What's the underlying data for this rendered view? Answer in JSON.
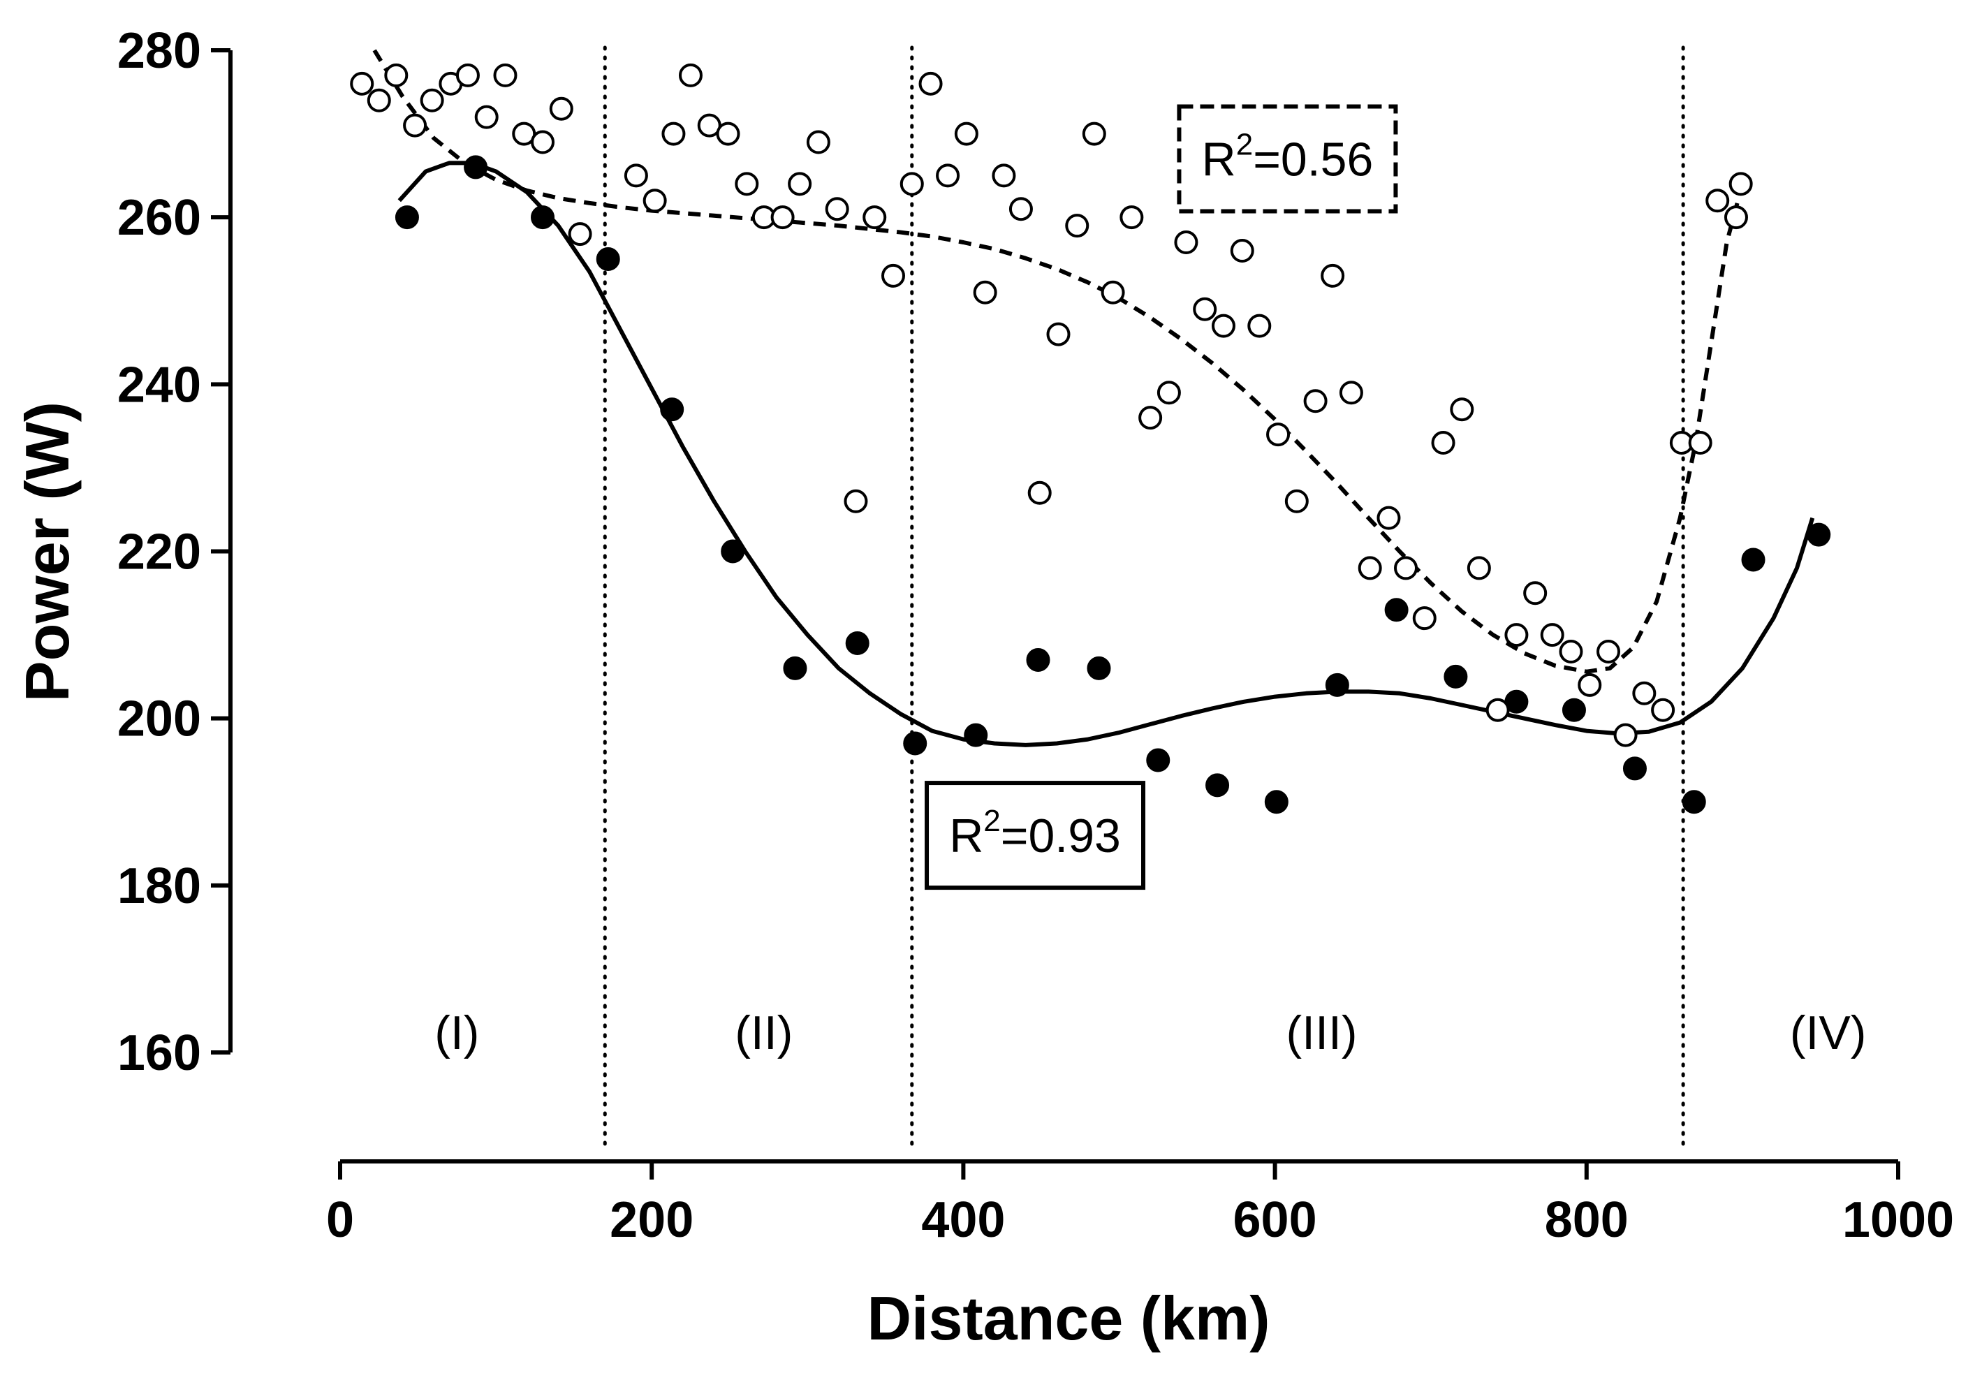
{
  "chart_data": {
    "type": "scatter",
    "title": "",
    "xlabel": "Distance (km)",
    "ylabel": "Power (W)",
    "xlim": [
      0,
      1000
    ],
    "ylim": [
      160,
      280
    ],
    "x_ticks": [
      0,
      200,
      400,
      600,
      800,
      1000
    ],
    "y_ticks": [
      160,
      180,
      200,
      220,
      240,
      260,
      280
    ],
    "grid": false,
    "legend": "none",
    "phase_boundaries": [
      170,
      367,
      862
    ],
    "phases": [
      {
        "label": "(I)",
        "x": 75
      },
      {
        "label": "(II)",
        "x": 272
      },
      {
        "label": "(III)",
        "x": 630
      },
      {
        "label": "(IV)",
        "x": 955
      }
    ],
    "series": [
      {
        "name": "filled",
        "marker": "filled-circle",
        "fit": "solid",
        "r2": "R²=0.93",
        "r2_base": "R",
        "r2_sup": "2",
        "r2_rest": "=0.93",
        "annotation_at": [
          446,
          186
        ],
        "points": [
          [
            43,
            260
          ],
          [
            87,
            266
          ],
          [
            130,
            260
          ],
          [
            172,
            255
          ],
          [
            213,
            237
          ],
          [
            252,
            220
          ],
          [
            292,
            206
          ],
          [
            332,
            209
          ],
          [
            369,
            197
          ],
          [
            408,
            198
          ],
          [
            448,
            207
          ],
          [
            487,
            206
          ],
          [
            525,
            195
          ],
          [
            563,
            192
          ],
          [
            601,
            190
          ],
          [
            640,
            204
          ],
          [
            678,
            213
          ],
          [
            716,
            205
          ],
          [
            755,
            202
          ],
          [
            792,
            201
          ],
          [
            831,
            194
          ],
          [
            869,
            190
          ],
          [
            907,
            219
          ],
          [
            949,
            222
          ]
        ],
        "fit_curve": [
          [
            38,
            262
          ],
          [
            55,
            265.5
          ],
          [
            70,
            266.5
          ],
          [
            85,
            266.5
          ],
          [
            100,
            265.5
          ],
          [
            120,
            263
          ],
          [
            140,
            259
          ],
          [
            160,
            253.5
          ],
          [
            180,
            246.5
          ],
          [
            200,
            239.5
          ],
          [
            220,
            232.5
          ],
          [
            240,
            226
          ],
          [
            260,
            220
          ],
          [
            280,
            214.5
          ],
          [
            300,
            210
          ],
          [
            320,
            206
          ],
          [
            340,
            203
          ],
          [
            360,
            200.5
          ],
          [
            380,
            198.5
          ],
          [
            400,
            197.5
          ],
          [
            420,
            197
          ],
          [
            440,
            196.8
          ],
          [
            460,
            197
          ],
          [
            480,
            197.5
          ],
          [
            500,
            198.3
          ],
          [
            520,
            199.3
          ],
          [
            540,
            200.3
          ],
          [
            560,
            201.2
          ],
          [
            580,
            202
          ],
          [
            600,
            202.6
          ],
          [
            620,
            203
          ],
          [
            640,
            203.2
          ],
          [
            660,
            203.2
          ],
          [
            680,
            203
          ],
          [
            700,
            202.4
          ],
          [
            720,
            201.6
          ],
          [
            740,
            200.8
          ],
          [
            760,
            200
          ],
          [
            780,
            199.2
          ],
          [
            800,
            198.5
          ],
          [
            820,
            198.2
          ],
          [
            840,
            198.4
          ],
          [
            860,
            199.5
          ],
          [
            880,
            202
          ],
          [
            900,
            206
          ],
          [
            920,
            212
          ],
          [
            935,
            218
          ],
          [
            945,
            224
          ]
        ]
      },
      {
        "name": "open",
        "marker": "open-circle",
        "fit": "dashed",
        "r2": "R²=0.56",
        "r2_base": "R",
        "r2_sup": "2",
        "r2_rest": "=0.56",
        "annotation_at": [
          608,
          267
        ],
        "points": [
          [
            14,
            276
          ],
          [
            25,
            274
          ],
          [
            36,
            277
          ],
          [
            48,
            271
          ],
          [
            59,
            274
          ],
          [
            71,
            276
          ],
          [
            82,
            277
          ],
          [
            94,
            272
          ],
          [
            106,
            277
          ],
          [
            118,
            270
          ],
          [
            130,
            269
          ],
          [
            142,
            273
          ],
          [
            154,
            258
          ],
          [
            190,
            265
          ],
          [
            202,
            262
          ],
          [
            214,
            270
          ],
          [
            225,
            277
          ],
          [
            237,
            271
          ],
          [
            249,
            270
          ],
          [
            261,
            264
          ],
          [
            272,
            260
          ],
          [
            284,
            260
          ],
          [
            295,
            264
          ],
          [
            307,
            269
          ],
          [
            319,
            261
          ],
          [
            331,
            226
          ],
          [
            343,
            260
          ],
          [
            355,
            253
          ],
          [
            367,
            264
          ],
          [
            379,
            276
          ],
          [
            390,
            265
          ],
          [
            402,
            270
          ],
          [
            414,
            251
          ],
          [
            426,
            265
          ],
          [
            437,
            261
          ],
          [
            449,
            227
          ],
          [
            461,
            246
          ],
          [
            473,
            259
          ],
          [
            484,
            270
          ],
          [
            496,
            251
          ],
          [
            508,
            260
          ],
          [
            520,
            236
          ],
          [
            532,
            239
          ],
          [
            543,
            257
          ],
          [
            555,
            249
          ],
          [
            567,
            247
          ],
          [
            579,
            256
          ],
          [
            590,
            247
          ],
          [
            602,
            234
          ],
          [
            614,
            226
          ],
          [
            626,
            238
          ],
          [
            637,
            253
          ],
          [
            649,
            239
          ],
          [
            661,
            218
          ],
          [
            673,
            224
          ],
          [
            684,
            218
          ],
          [
            696,
            212
          ],
          [
            708,
            233
          ],
          [
            720,
            237
          ],
          [
            731,
            218
          ],
          [
            743,
            201
          ],
          [
            755,
            210
          ],
          [
            767,
            215
          ],
          [
            778,
            210
          ],
          [
            790,
            208
          ],
          [
            802,
            204
          ],
          [
            814,
            208
          ],
          [
            825,
            198
          ],
          [
            837,
            203
          ],
          [
            849,
            201
          ],
          [
            861,
            233
          ],
          [
            873,
            233
          ],
          [
            884,
            262
          ],
          [
            896,
            260
          ],
          [
            899,
            264
          ]
        ],
        "fit_curve": [
          [
            22,
            280
          ],
          [
            40,
            274.5
          ],
          [
            60,
            269.5
          ],
          [
            80,
            266.5
          ],
          [
            100,
            264.5
          ],
          [
            120,
            263.2
          ],
          [
            140,
            262.3
          ],
          [
            160,
            261.7
          ],
          [
            180,
            261.2
          ],
          [
            200,
            260.8
          ],
          [
            220,
            260.5
          ],
          [
            240,
            260.2
          ],
          [
            260,
            259.9
          ],
          [
            280,
            259.6
          ],
          [
            300,
            259.3
          ],
          [
            320,
            259
          ],
          [
            340,
            258.6
          ],
          [
            360,
            258.2
          ],
          [
            380,
            257.7
          ],
          [
            400,
            257
          ],
          [
            420,
            256.2
          ],
          [
            440,
            255.1
          ],
          [
            460,
            253.8
          ],
          [
            480,
            252.2
          ],
          [
            500,
            250.3
          ],
          [
            520,
            248
          ],
          [
            540,
            245.4
          ],
          [
            560,
            242.5
          ],
          [
            580,
            239.3
          ],
          [
            600,
            235.8
          ],
          [
            620,
            232
          ],
          [
            640,
            228.1
          ],
          [
            660,
            224
          ],
          [
            680,
            220
          ],
          [
            700,
            216.2
          ],
          [
            720,
            212.8
          ],
          [
            740,
            210
          ],
          [
            760,
            207.8
          ],
          [
            780,
            206.3
          ],
          [
            800,
            205.6
          ],
          [
            815,
            206
          ],
          [
            830,
            208.5
          ],
          [
            845,
            214
          ],
          [
            860,
            224
          ],
          [
            870,
            233
          ],
          [
            880,
            245
          ],
          [
            890,
            257
          ],
          [
            900,
            264
          ]
        ]
      }
    ]
  }
}
